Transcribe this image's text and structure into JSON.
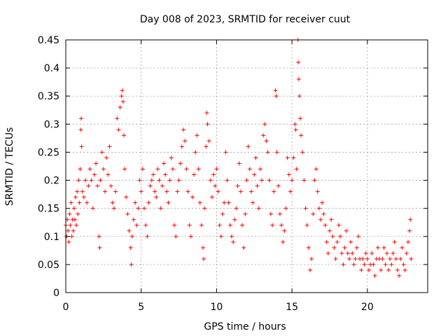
{
  "chart_data": {
    "type": "scatter",
    "title": "Day 008 of 2023, SRMTID for receiver cuut",
    "xlabel": "GPS time / hours",
    "ylabel": "SRMTID / TECUs",
    "xlim": [
      0,
      24
    ],
    "ylim": [
      0,
      0.45
    ],
    "xticks": [
      0,
      5,
      10,
      15,
      20
    ],
    "xtick_labels": [
      "0",
      "5",
      "10",
      "15",
      "20"
    ],
    "yticks": [
      0,
      0.05,
      0.1,
      0.15,
      0.2,
      0.25,
      0.3,
      0.35,
      0.4,
      0.45
    ],
    "ytick_labels": [
      "0",
      "0.05",
      "0.1",
      "0.15",
      "0.2",
      "0.25",
      "0.3",
      "0.35",
      "0.4",
      "0.45"
    ],
    "grid": true,
    "marker": "plus",
    "colors": {
      "points": "#ff0000",
      "grid": "#a0a0a0",
      "axes": "#000000"
    },
    "series": [
      {
        "points": [
          [
            0.0,
            0.12
          ],
          [
            0.05,
            0.1
          ],
          [
            0.1,
            0.13
          ],
          [
            0.15,
            0.11
          ],
          [
            0.2,
            0.09
          ],
          [
            0.25,
            0.14
          ],
          [
            0.3,
            0.12
          ],
          [
            0.35,
            0.16
          ],
          [
            0.4,
            0.1
          ],
          [
            0.45,
            0.13
          ],
          [
            0.5,
            0.11
          ],
          [
            0.55,
            0.15
          ],
          [
            0.6,
            0.13
          ],
          [
            0.65,
            0.17
          ],
          [
            0.7,
            0.12
          ],
          [
            0.75,
            0.18
          ],
          [
            0.8,
            0.14
          ],
          [
            0.85,
            0.2
          ],
          [
            0.9,
            0.16
          ],
          [
            0.95,
            0.22
          ],
          [
            1.0,
            0.29
          ],
          [
            1.02,
            0.31
          ],
          [
            1.05,
            0.26
          ],
          [
            1.1,
            0.18
          ],
          [
            1.2,
            0.17
          ],
          [
            1.3,
            0.2
          ],
          [
            1.4,
            0.16
          ],
          [
            1.5,
            0.19
          ],
          [
            1.6,
            0.22
          ],
          [
            1.7,
            0.2
          ],
          [
            1.8,
            0.15
          ],
          [
            1.9,
            0.21
          ],
          [
            2.0,
            0.23
          ],
          [
            2.1,
            0.19
          ],
          [
            2.2,
            0.1
          ],
          [
            2.25,
            0.08
          ],
          [
            2.3,
            0.2
          ],
          [
            2.4,
            0.25
          ],
          [
            2.5,
            0.22
          ],
          [
            2.6,
            0.18
          ],
          [
            2.7,
            0.24
          ],
          [
            2.8,
            0.21
          ],
          [
            2.9,
            0.26
          ],
          [
            3.0,
            0.19
          ],
          [
            3.1,
            0.16
          ],
          [
            3.2,
            0.15
          ],
          [
            3.3,
            0.18
          ],
          [
            3.4,
            0.31
          ],
          [
            3.5,
            0.29
          ],
          [
            3.6,
            0.33
          ],
          [
            3.7,
            0.35
          ],
          [
            3.75,
            0.36
          ],
          [
            3.8,
            0.34
          ],
          [
            3.85,
            0.28
          ],
          [
            3.9,
            0.22
          ],
          [
            4.0,
            0.17
          ],
          [
            4.1,
            0.14
          ],
          [
            4.2,
            0.11
          ],
          [
            4.3,
            0.08
          ],
          [
            4.35,
            0.05
          ],
          [
            4.4,
            0.1
          ],
          [
            4.5,
            0.13
          ],
          [
            4.6,
            0.16
          ],
          [
            4.7,
            0.12
          ],
          [
            4.8,
            0.15
          ],
          [
            4.9,
            0.2
          ],
          [
            5.0,
            0.18
          ],
          [
            5.1,
            0.22
          ],
          [
            5.2,
            0.15
          ],
          [
            5.3,
            0.12
          ],
          [
            5.4,
            0.1
          ],
          [
            5.5,
            0.16
          ],
          [
            5.6,
            0.19
          ],
          [
            5.7,
            0.2
          ],
          [
            5.8,
            0.21
          ],
          [
            5.9,
            0.18
          ],
          [
            6.0,
            0.17
          ],
          [
            6.1,
            0.22
          ],
          [
            6.2,
            0.2
          ],
          [
            6.3,
            0.15
          ],
          [
            6.4,
            0.19
          ],
          [
            6.5,
            0.23
          ],
          [
            6.6,
            0.21
          ],
          [
            6.7,
            0.18
          ],
          [
            6.8,
            0.16
          ],
          [
            6.9,
            0.2
          ],
          [
            7.0,
            0.24
          ],
          [
            7.1,
            0.22
          ],
          [
            7.2,
            0.12
          ],
          [
            7.3,
            0.1
          ],
          [
            7.4,
            0.18
          ],
          [
            7.5,
            0.2
          ],
          [
            7.6,
            0.23
          ],
          [
            7.7,
            0.26
          ],
          [
            7.8,
            0.29
          ],
          [
            7.9,
            0.27
          ],
          [
            8.0,
            0.22
          ],
          [
            8.1,
            0.18
          ],
          [
            8.2,
            0.12
          ],
          [
            8.3,
            0.1
          ],
          [
            8.4,
            0.17
          ],
          [
            8.5,
            0.21
          ],
          [
            8.6,
            0.25
          ],
          [
            8.7,
            0.28
          ],
          [
            8.8,
            0.22
          ],
          [
            8.9,
            0.16
          ],
          [
            9.0,
            0.12
          ],
          [
            9.1,
            0.08
          ],
          [
            9.15,
            0.06
          ],
          [
            9.2,
            0.15
          ],
          [
            9.3,
            0.26
          ],
          [
            9.35,
            0.32
          ],
          [
            9.4,
            0.3
          ],
          [
            9.5,
            0.27
          ],
          [
            9.6,
            0.2
          ],
          [
            9.7,
            0.17
          ],
          [
            9.8,
            0.21
          ],
          [
            9.9,
            0.19
          ],
          [
            10.0,
            0.22
          ],
          [
            10.1,
            0.18
          ],
          [
            10.2,
            0.12
          ],
          [
            10.3,
            0.1
          ],
          [
            10.4,
            0.14
          ],
          [
            10.5,
            0.16
          ],
          [
            10.6,
            0.25
          ],
          [
            10.7,
            0.2
          ],
          [
            10.8,
            0.16
          ],
          [
            10.9,
            0.12
          ],
          [
            11.0,
            0.1
          ],
          [
            11.1,
            0.09
          ],
          [
            11.2,
            0.13
          ],
          [
            11.3,
            0.15
          ],
          [
            11.4,
            0.19
          ],
          [
            11.5,
            0.23
          ],
          [
            11.6,
            0.18
          ],
          [
            11.7,
            0.12
          ],
          [
            11.8,
            0.08
          ],
          [
            11.9,
            0.14
          ],
          [
            12.0,
            0.2
          ],
          [
            12.1,
            0.26
          ],
          [
            12.2,
            0.22
          ],
          [
            12.3,
            0.18
          ],
          [
            12.4,
            0.16
          ],
          [
            12.5,
            0.21
          ],
          [
            12.6,
            0.24
          ],
          [
            12.7,
            0.19
          ],
          [
            12.8,
            0.15
          ],
          [
            12.9,
            0.22
          ],
          [
            13.0,
            0.2
          ],
          [
            13.1,
            0.28
          ],
          [
            13.2,
            0.3
          ],
          [
            13.3,
            0.27
          ],
          [
            13.4,
            0.25
          ],
          [
            13.5,
            0.2
          ],
          [
            13.6,
            0.14
          ],
          [
            13.7,
            0.12
          ],
          [
            13.8,
            0.18
          ],
          [
            13.9,
            0.36
          ],
          [
            13.95,
            0.35
          ],
          [
            14.0,
            0.25
          ],
          [
            14.1,
            0.19
          ],
          [
            14.2,
            0.14
          ],
          [
            14.3,
            0.12
          ],
          [
            14.4,
            0.09
          ],
          [
            14.5,
            0.11
          ],
          [
            14.6,
            0.15
          ],
          [
            14.7,
            0.24
          ],
          [
            14.8,
            0.21
          ],
          [
            14.9,
            0.18
          ],
          [
            15.0,
            0.2
          ],
          [
            15.1,
            0.24
          ],
          [
            15.2,
            0.3
          ],
          [
            15.25,
            0.29
          ],
          [
            15.3,
            0.22
          ],
          [
            15.4,
            0.45
          ],
          [
            15.42,
            0.41
          ],
          [
            15.45,
            0.38
          ],
          [
            15.5,
            0.35
          ],
          [
            15.55,
            0.31
          ],
          [
            15.6,
            0.28
          ],
          [
            15.7,
            0.25
          ],
          [
            15.8,
            0.2
          ],
          [
            15.9,
            0.15
          ],
          [
            16.0,
            0.12
          ],
          [
            16.1,
            0.08
          ],
          [
            16.2,
            0.04
          ],
          [
            16.3,
            0.06
          ],
          [
            16.4,
            0.14
          ],
          [
            16.5,
            0.2
          ],
          [
            16.6,
            0.22
          ],
          [
            16.7,
            0.18
          ],
          [
            16.8,
            0.15
          ],
          [
            16.9,
            0.13
          ],
          [
            17.0,
            0.16
          ],
          [
            17.1,
            0.14
          ],
          [
            17.2,
            0.12
          ],
          [
            17.3,
            0.09
          ],
          [
            17.4,
            0.07
          ],
          [
            17.5,
            0.11
          ],
          [
            17.6,
            0.13
          ],
          [
            17.7,
            0.1
          ],
          [
            17.8,
            0.08
          ],
          [
            17.9,
            0.06
          ],
          [
            18.0,
            0.09
          ],
          [
            18.1,
            0.12
          ],
          [
            18.2,
            0.1
          ],
          [
            18.3,
            0.07
          ],
          [
            18.4,
            0.05
          ],
          [
            18.5,
            0.08
          ],
          [
            18.6,
            0.11
          ],
          [
            18.7,
            0.07
          ],
          [
            18.8,
            0.06
          ],
          [
            18.9,
            0.09
          ],
          [
            19.0,
            0.07
          ],
          [
            19.1,
            0.05
          ],
          [
            19.2,
            0.06
          ],
          [
            19.3,
            0.08
          ],
          [
            19.4,
            0.1
          ],
          [
            19.5,
            0.06
          ],
          [
            19.6,
            0.04
          ],
          [
            19.7,
            0.06
          ],
          [
            19.8,
            0.05
          ],
          [
            19.9,
            0.07
          ],
          [
            20.0,
            0.06
          ],
          [
            20.1,
            0.04
          ],
          [
            20.2,
            0.05
          ],
          [
            20.3,
            0.07
          ],
          [
            20.4,
            0.05
          ],
          [
            20.5,
            0.03
          ],
          [
            20.6,
            0.06
          ],
          [
            20.7,
            0.08
          ],
          [
            20.8,
            0.06
          ],
          [
            20.9,
            0.04
          ],
          [
            21.0,
            0.06
          ],
          [
            21.1,
            0.08
          ],
          [
            21.2,
            0.05
          ],
          [
            21.3,
            0.07
          ],
          [
            21.4,
            0.04
          ],
          [
            21.5,
            0.06
          ],
          [
            21.6,
            0.05
          ],
          [
            21.7,
            0.07
          ],
          [
            21.8,
            0.09
          ],
          [
            21.9,
            0.06
          ],
          [
            22.0,
            0.04
          ],
          [
            22.1,
            0.03
          ],
          [
            22.2,
            0.06
          ],
          [
            22.3,
            0.08
          ],
          [
            22.4,
            0.05
          ],
          [
            22.5,
            0.04
          ],
          [
            22.6,
            0.07
          ],
          [
            22.7,
            0.09
          ],
          [
            22.8,
            0.11
          ],
          [
            22.85,
            0.13
          ],
          [
            22.9,
            0.06
          ]
        ]
      }
    ]
  }
}
